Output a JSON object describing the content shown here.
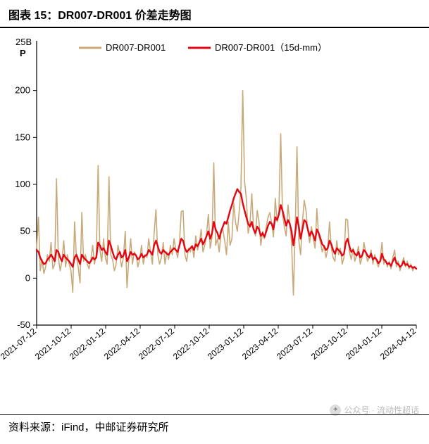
{
  "title": "图表 15：DR007-DR001 价差走势图",
  "source": "资料来源：iFind，中邮证券研究所",
  "watermark": "公众号 · 流动性超话",
  "chart": {
    "type": "line",
    "y_unit_top": "25B",
    "y_unit_bottom": "P",
    "background_color": "#ffffff",
    "axis_color": "#000000",
    "ylim": [
      -50,
      250
    ],
    "ytick_step": 50,
    "yticks": [
      -50,
      0,
      50,
      100,
      150,
      200
    ],
    "x_labels": [
      "2021-07-12",
      "2021-10-12",
      "2022-01-12",
      "2022-04-12",
      "2022-07-12",
      "2022-10-12",
      "2023-01-12",
      "2023-04-12",
      "2023-07-12",
      "2023-10-12",
      "2024-01-12",
      "2024-04-12"
    ],
    "legend": {
      "items": [
        {
          "label": "DR007-DR001",
          "color": "#c9a979"
        },
        {
          "label": "DR007-DR001（15d-mm）",
          "color": "#e30613"
        }
      ],
      "position": "top-center"
    },
    "series": [
      {
        "name": "DR007-DR001",
        "color": "#c9a979",
        "line_width": 1.6,
        "values": [
          32,
          65,
          8,
          20,
          5,
          12,
          25,
          18,
          38,
          10,
          15,
          106,
          22,
          8,
          18,
          40,
          12,
          25,
          15,
          8,
          -15,
          60,
          22,
          12,
          -5,
          70,
          18,
          25,
          15,
          10,
          20,
          35,
          15,
          25,
          120,
          30,
          18,
          42,
          22,
          15,
          108,
          25,
          20,
          8,
          15,
          35,
          25,
          12,
          22,
          50,
          -10,
          20,
          42,
          15,
          28,
          25,
          12,
          20,
          35,
          15,
          25,
          22,
          42,
          28,
          15,
          48,
          73,
          25,
          15,
          22,
          38,
          15,
          28,
          20,
          35,
          25,
          42,
          30,
          22,
          38,
          71,
          72,
          25,
          18,
          32,
          28,
          35,
          22,
          45,
          30,
          38,
          52,
          28,
          35,
          48,
          68,
          32,
          44,
          123,
          35,
          42,
          28,
          48,
          52,
          40,
          25,
          60,
          35,
          42,
          80,
          60,
          50,
          70,
          95,
          200,
          103,
          85,
          48,
          58,
          90,
          52,
          45,
          72,
          60,
          35,
          50,
          42,
          55,
          65,
          70,
          58,
          44,
          85,
          60,
          70,
          154,
          68,
          55,
          45,
          78,
          60,
          38,
          -18,
          50,
          140,
          40,
          25,
          60,
          83,
          72,
          50,
          38,
          55,
          42,
          32,
          74,
          45,
          38,
          28,
          35,
          22,
          30,
          60,
          32,
          22,
          18,
          40,
          25,
          32,
          15,
          22,
          63,
          62,
          28,
          20,
          32,
          18,
          25,
          34,
          15,
          22,
          38,
          28,
          18,
          22,
          30,
          15,
          25,
          18,
          12,
          20,
          38,
          15,
          20,
          12,
          18,
          10,
          22,
          30,
          12,
          18,
          8,
          15,
          22,
          12,
          18,
          10,
          15,
          8,
          12,
          10
        ]
      },
      {
        "name": "DR007-DR001-15dmm",
        "color": "#e30613",
        "line_width": 2.4,
        "values": [
          30,
          28,
          22,
          18,
          15,
          16,
          20,
          22,
          25,
          22,
          18,
          30,
          28,
          22,
          18,
          25,
          22,
          20,
          18,
          15,
          12,
          22,
          25,
          20,
          15,
          25,
          22,
          20,
          18,
          16,
          18,
          22,
          20,
          22,
          38,
          35,
          30,
          32,
          28,
          25,
          40,
          35,
          28,
          22,
          20,
          25,
          28,
          22,
          24,
          30,
          18,
          22,
          28,
          25,
          26,
          24,
          20,
          22,
          26,
          22,
          24,
          25,
          30,
          28,
          25,
          35,
          40,
          34,
          28,
          26,
          30,
          28,
          26,
          25,
          28,
          30,
          32,
          30,
          28,
          35,
          42,
          40,
          32,
          28,
          30,
          32,
          34,
          30,
          36,
          34,
          38,
          42,
          36,
          40,
          45,
          50,
          42,
          48,
          60,
          52,
          48,
          42,
          50,
          55,
          60,
          58,
          65,
          72,
          78,
          85,
          90,
          95,
          92,
          90,
          80,
          72,
          65,
          58,
          55,
          60,
          52,
          48,
          55,
          52,
          45,
          48,
          44,
          50,
          56,
          60,
          58,
          52,
          65,
          62,
          68,
          78,
          72,
          64,
          56,
          62,
          58,
          50,
          35,
          48,
          65,
          55,
          42,
          52,
          62,
          60,
          52,
          45,
          50,
          46,
          40,
          52,
          48,
          42,
          36,
          34,
          30,
          32,
          40,
          36,
          30,
          26,
          32,
          30,
          28,
          24,
          26,
          38,
          42,
          34,
          28,
          30,
          26,
          24,
          28,
          22,
          24,
          30,
          28,
          24,
          22,
          26,
          20,
          22,
          20,
          16,
          18,
          26,
          20,
          18,
          15,
          16,
          13,
          18,
          22,
          16,
          15,
          12,
          14,
          18,
          14,
          15,
          12,
          13,
          11,
          12,
          10
        ]
      }
    ]
  }
}
